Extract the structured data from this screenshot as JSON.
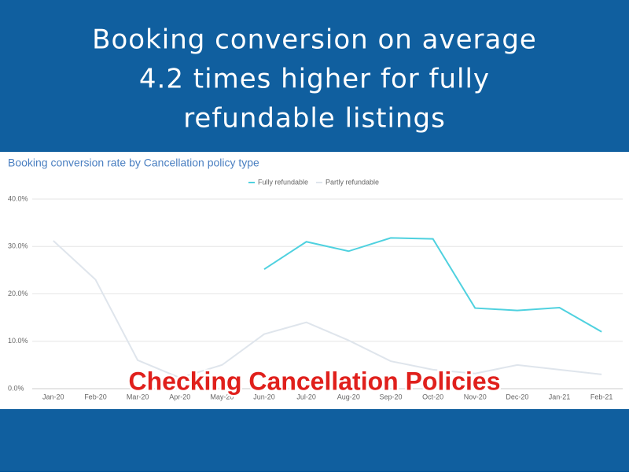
{
  "header": {
    "title": [
      "Booking conversion on average",
      "4.2 times higher for fully",
      "refundable listings"
    ]
  },
  "caption": "Checking Cancellation Policies",
  "chart_data": {
    "type": "line",
    "title": "Booking conversion rate by Cancellation policy type",
    "categories": [
      "Jan-20",
      "Feb-20",
      "Mar-20",
      "Apr-20",
      "May-20",
      "Jun-20",
      "Jul-20",
      "Aug-20",
      "Sep-20",
      "Oct-20",
      "Nov-20",
      "Dec-20",
      "Jan-21",
      "Feb-21"
    ],
    "series": [
      {
        "name": "Fully refundable",
        "color": "#4fd1df",
        "values": [
          null,
          null,
          null,
          null,
          null,
          25.2,
          31,
          29,
          31.8,
          31.6,
          17,
          16.5,
          17.1,
          12
        ]
      },
      {
        "name": "Partly refundable",
        "color": "#dfe5ec",
        "values": [
          31.2,
          23,
          6,
          2.3,
          5,
          11.5,
          14,
          10.2,
          5.8,
          4,
          3.2,
          5,
          4,
          3
        ]
      }
    ],
    "ylim": [
      0,
      40
    ],
    "yticks": [
      {
        "value": 0,
        "label": "0.0%"
      },
      {
        "value": 10,
        "label": "10.0%"
      },
      {
        "value": 20,
        "label": "20.0%"
      },
      {
        "value": 30,
        "label": "30.0%"
      },
      {
        "value": 40,
        "label": "40.0%"
      }
    ],
    "grid": true,
    "legend": "top"
  }
}
